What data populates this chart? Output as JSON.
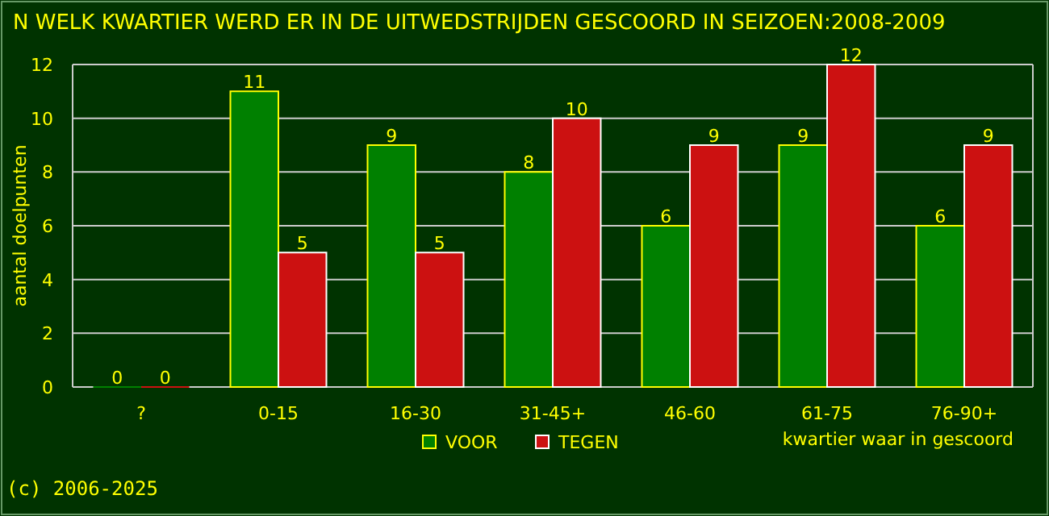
{
  "chart_data": {
    "type": "bar",
    "title": "N WELK KWARTIER WERD ER IN DE UITWEDSTRIJDEN GESCOORD IN SEIZOEN:2008-2009",
    "xlabel": "kwartier waar in gescoord",
    "ylabel": "aantal doelpunten",
    "categories": [
      "?",
      "0-15",
      "16-30",
      "31-45+",
      "46-60",
      "61-75",
      "76-90+"
    ],
    "series": [
      {
        "name": "VOOR",
        "color": "#008000",
        "values": [
          0,
          11,
          9,
          8,
          6,
          9,
          6
        ]
      },
      {
        "name": "TEGEN",
        "color": "#cc1111",
        "values": [
          0,
          5,
          5,
          10,
          9,
          12,
          9
        ]
      }
    ],
    "ylim": [
      0,
      12
    ],
    "yticks": [
      0,
      2,
      4,
      6,
      8,
      10,
      12
    ],
    "grid": "y",
    "legend": "bottom",
    "data_labels": true,
    "annotations": [
      "(c) 2006-2025"
    ]
  }
}
